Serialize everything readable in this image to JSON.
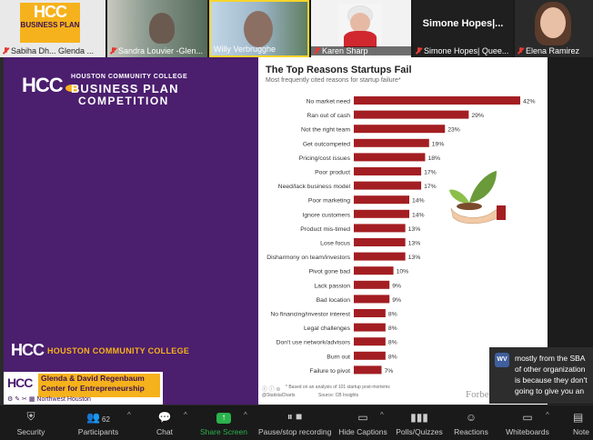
{
  "participants": [
    {
      "name": "Sabiha Dh... Glenda ...",
      "kind": "logo",
      "logo_big": "HCC",
      "logo_small": "BUSINESS PLAN"
    },
    {
      "name": "Sandra Louvier -Glen..."
    },
    {
      "name": "Willy Verbrugghe"
    },
    {
      "name": "Karen Sharp"
    },
    {
      "name": "Simone Hopes| Quee...",
      "display": "Simone Hopes|..."
    },
    {
      "name": "Elena Ramirez"
    }
  ],
  "slide": {
    "left": {
      "logo": "HCC",
      "org_line": "HOUSTON COMMUNITY COLLEGE",
      "comp_line1": "BUSINESS PLAN",
      "comp_line2": "COMPETITION",
      "footer_logo": "HCC",
      "footer_text": "HOUSTON COMMUNITY COLLEGE",
      "center_logo": "HCC",
      "center_name_1": "Glenda & David Regenbaum",
      "center_name_2": "Center for Entrepreneurship",
      "center_campus": "Northwest Houston"
    },
    "chart_title": "The Top Reasons Startups Fail",
    "chart_subtitle": "Most frequently cited reasons for startup failure*",
    "footnote": "* Based on an analysis of 101 startup post-mortems",
    "source": "Source: CB Insights",
    "handle": "@StatistaCharts",
    "brand": "Forbes statista"
  },
  "chart_data": {
    "type": "bar",
    "orientation": "horizontal",
    "bar_color": "#a31e22",
    "categories": [
      "No market need",
      "Ran out of cash",
      "Not the right team",
      "Get outcompeted",
      "Pricing/cost issues",
      "Poor product",
      "Need/lack business model",
      "Poor marketing",
      "Ignore customers",
      "Product mis-timed",
      "Lose focus",
      "Disharmony on team/investors",
      "Pivot gone bad",
      "Lack passion",
      "Bad location",
      "No financing/investor interest",
      "Legal challenges",
      "Don't use network/advisors",
      "Burn out",
      "Failure to pivot"
    ],
    "values": [
      42,
      29,
      23,
      19,
      18,
      17,
      17,
      14,
      14,
      13,
      13,
      13,
      10,
      9,
      9,
      8,
      8,
      8,
      8,
      7
    ],
    "value_suffix": "%",
    "xlim": [
      0,
      42
    ]
  },
  "chat": {
    "avatar": "WV",
    "lines": [
      "mostly from the SBA",
      "of other organization",
      "is because they don't",
      "going to give you an"
    ]
  },
  "toolbar": {
    "security": "Security",
    "participants": "Participants",
    "participants_count": "62",
    "chat": "Chat",
    "share": "Share Screen",
    "record": "Pause/stop recording",
    "captions": "Hide Captions",
    "polls": "Polls/Quizzes",
    "reactions": "Reactions",
    "whiteboards": "Whiteboards",
    "notes": "Note"
  }
}
